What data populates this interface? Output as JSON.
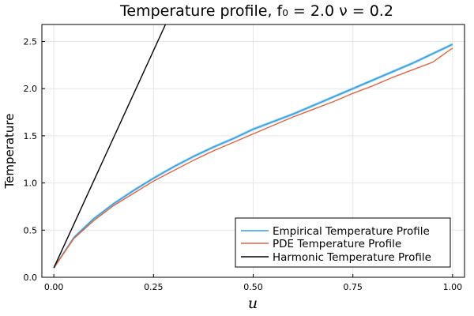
{
  "chart_data": {
    "type": "line",
    "title": "Temperature profile, f₀ = 2.0 ν = 0.2",
    "xlabel": "u",
    "ylabel": "Temperature",
    "xlim": [
      -0.03,
      1.03
    ],
    "ylim": [
      0.0,
      2.68
    ],
    "xticks": [
      0.0,
      0.25,
      0.5,
      0.75,
      1.0
    ],
    "xtick_labels": [
      "0.00",
      "0.25",
      "0.50",
      "0.75",
      "1.00"
    ],
    "yticks": [
      0.0,
      0.5,
      1.0,
      1.5,
      2.0,
      2.5
    ],
    "ytick_labels": [
      "0.0",
      "0.5",
      "1.0",
      "1.5",
      "2.0",
      "2.5"
    ],
    "grid": true,
    "legend_position": "bottom-right",
    "series": [
      {
        "name": "Empirical Temperature Profile",
        "color": "#2d9fe2",
        "band_color": "#9fd3f5",
        "x": [
          0.0,
          0.05,
          0.1,
          0.15,
          0.2,
          0.25,
          0.3,
          0.35,
          0.4,
          0.45,
          0.5,
          0.55,
          0.6,
          0.65,
          0.7,
          0.75,
          0.8,
          0.85,
          0.9,
          0.95,
          1.0
        ],
        "y": [
          0.1,
          0.42,
          0.62,
          0.78,
          0.92,
          1.05,
          1.17,
          1.28,
          1.38,
          1.47,
          1.57,
          1.65,
          1.73,
          1.82,
          1.91,
          2.0,
          2.09,
          2.18,
          2.27,
          2.37,
          2.47
        ]
      },
      {
        "name": "PDE Temperature Profile",
        "color": "#e4613c",
        "x": [
          0.0,
          0.05,
          0.1,
          0.15,
          0.2,
          0.25,
          0.3,
          0.35,
          0.4,
          0.45,
          0.5,
          0.55,
          0.6,
          0.65,
          0.7,
          0.75,
          0.8,
          0.85,
          0.9,
          0.95,
          1.0
        ],
        "y": [
          0.1,
          0.41,
          0.6,
          0.76,
          0.89,
          1.02,
          1.13,
          1.24,
          1.34,
          1.43,
          1.52,
          1.61,
          1.7,
          1.78,
          1.86,
          1.95,
          2.03,
          2.12,
          2.2,
          2.28,
          2.43
        ]
      },
      {
        "name": "Harmonic Temperature Profile",
        "color": "#000000",
        "x": [
          0.0,
          0.28
        ],
        "y": [
          0.1,
          2.68
        ]
      }
    ]
  }
}
